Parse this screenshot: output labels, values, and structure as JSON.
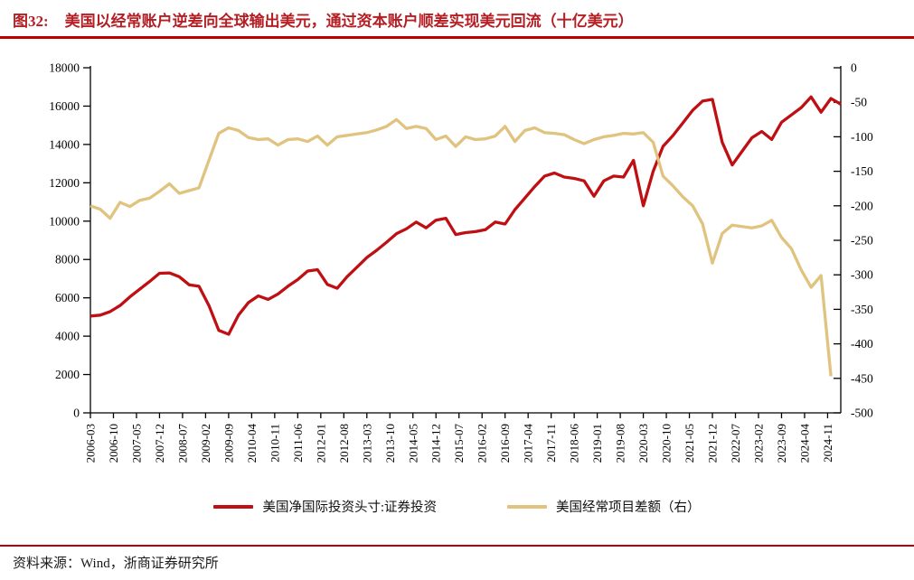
{
  "header": {
    "figure_label": "图32:",
    "title": "美国以经常账户逆差向全球输出美元，通过资本账户顺差实现美元回流（十亿美元）"
  },
  "footer": {
    "source": "资料来源：Wind，浙商证券研究所"
  },
  "colors": {
    "title_red": "#b41f24",
    "rule_red": "#c00000",
    "axis_black": "#000000",
    "series_red": "#bf0f13",
    "series_tan": "#dfc37e"
  },
  "chart_data": {
    "type": "line",
    "title": "美国以经常账户逆差向全球输出美元，通过资本账户顺差实现美元回流（十亿美元）",
    "x_start": "2006-03",
    "x_interval_months": 3,
    "x_label_interval_months": 7,
    "x_tick_labels": [
      "2006-03",
      "2006-10",
      "2007-05",
      "2007-12",
      "2008-07",
      "2009-02",
      "2009-09",
      "2010-04",
      "2010-11",
      "2011-06",
      "2012-01",
      "2012-08",
      "2013-03",
      "2013-10",
      "2014-05",
      "2014-12",
      "2015-07",
      "2016-02",
      "2016-09",
      "2017-04",
      "2017-11",
      "2018-06",
      "2019-01",
      "2019-08",
      "2020-03",
      "2020-10",
      "2021-05",
      "2021-12",
      "2022-07",
      "2023-02",
      "2023-09",
      "2024-04",
      "2024-11"
    ],
    "left_axis": {
      "min": 0,
      "max": 18000,
      "step": 2000,
      "ticks": [
        "18000",
        "16000",
        "14000",
        "12000",
        "10000",
        "8000",
        "6000",
        "4000",
        "2000",
        "0"
      ]
    },
    "right_axis": {
      "min": -500,
      "max": 0,
      "step": 50,
      "ticks": [
        "0",
        "-50",
        "-100",
        "-150",
        "-200",
        "-250",
        "-300",
        "-350",
        "-400",
        "-450",
        "-500"
      ]
    },
    "grid": false,
    "legend_position": "bottom",
    "series": [
      {
        "name": "美国净国际投资头寸:证券投资",
        "axis": "left",
        "color": "#bf0f13",
        "values": [
          5050,
          5100,
          5280,
          5600,
          6050,
          6450,
          6850,
          7280,
          7300,
          7100,
          6680,
          6600,
          5600,
          4300,
          4100,
          5100,
          5750,
          6100,
          5920,
          6200,
          6600,
          6950,
          7400,
          7470,
          6700,
          6500,
          7100,
          7600,
          8100,
          8480,
          8900,
          9350,
          9600,
          9950,
          9650,
          10050,
          10150,
          9300,
          9400,
          9450,
          9550,
          9950,
          9850,
          10600,
          11200,
          11800,
          12350,
          12510,
          12300,
          12230,
          12100,
          11300,
          12100,
          12350,
          12300,
          13170,
          10800,
          12600,
          13900,
          14460,
          15120,
          15780,
          16260,
          16350,
          14110,
          12930,
          13640,
          14350,
          14680,
          14260,
          15160,
          15540,
          15920,
          16480,
          15680,
          16400,
          16100
        ]
      },
      {
        "name": "美国经常项目差额（右）",
        "axis": "right",
        "color": "#dfc37e",
        "values": [
          -200,
          -205,
          -218,
          -195,
          -201,
          -192,
          -189,
          -179,
          -168,
          -182,
          -178,
          -174,
          -134,
          -95,
          -87,
          -91,
          -101,
          -104,
          -103,
          -112,
          -104,
          -103,
          -107,
          -99,
          -112,
          -100,
          -98,
          -96,
          -94,
          -90,
          -85,
          -75,
          -88,
          -85,
          -88,
          -104,
          -99,
          -114,
          -100,
          -104,
          -103,
          -99,
          -85,
          -107,
          -91,
          -87,
          -94,
          -95,
          -97,
          -104,
          -110,
          -104,
          -100,
          -98,
          -95,
          -96,
          -94,
          -108,
          -157,
          -171,
          -187,
          -200,
          -226,
          -283,
          -240,
          -228,
          -230,
          -232,
          -229,
          -221,
          -246,
          -262,
          -293,
          -318,
          -301,
          -447,
          null
        ]
      }
    ]
  },
  "legend": {
    "items": [
      {
        "label": "美国净国际投资头寸:证券投资",
        "color": "#bf0f13"
      },
      {
        "label": "美国经常项目差额（右）",
        "color": "#dfc37e"
      }
    ]
  }
}
